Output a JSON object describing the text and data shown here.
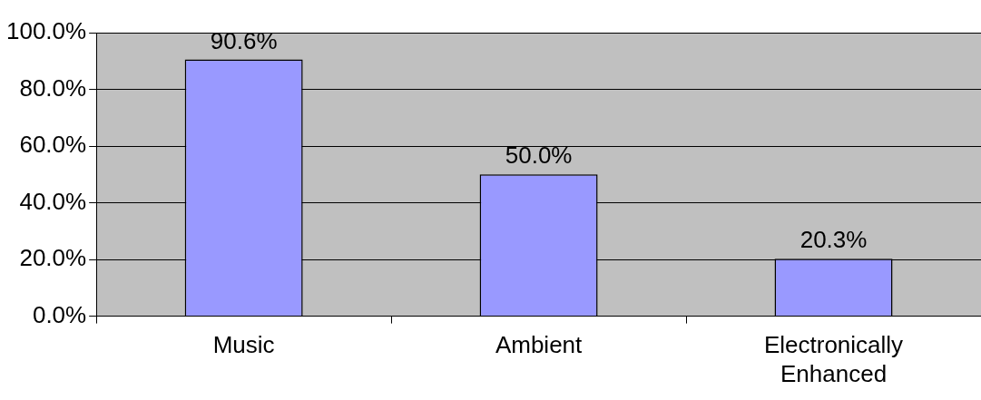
{
  "chart_data": {
    "type": "bar",
    "categories": [
      "Music",
      "Ambient",
      "Electronically Enhanced"
    ],
    "values": [
      90.6,
      50.0,
      20.3
    ],
    "value_labels": [
      "90.6%",
      "50.0%",
      "20.3%"
    ],
    "color": "#9999ff",
    "ylim": [
      0,
      100
    ],
    "yticks": [
      {
        "value": 0,
        "label": "0.0%"
      },
      {
        "value": 20,
        "label": "20.0%"
      },
      {
        "value": 40,
        "label": "40.0%"
      },
      {
        "value": 60,
        "label": "60.0%"
      },
      {
        "value": 80,
        "label": "80.0%"
      },
      {
        "value": 100,
        "label": "100.0%"
      }
    ],
    "grid": "y"
  }
}
